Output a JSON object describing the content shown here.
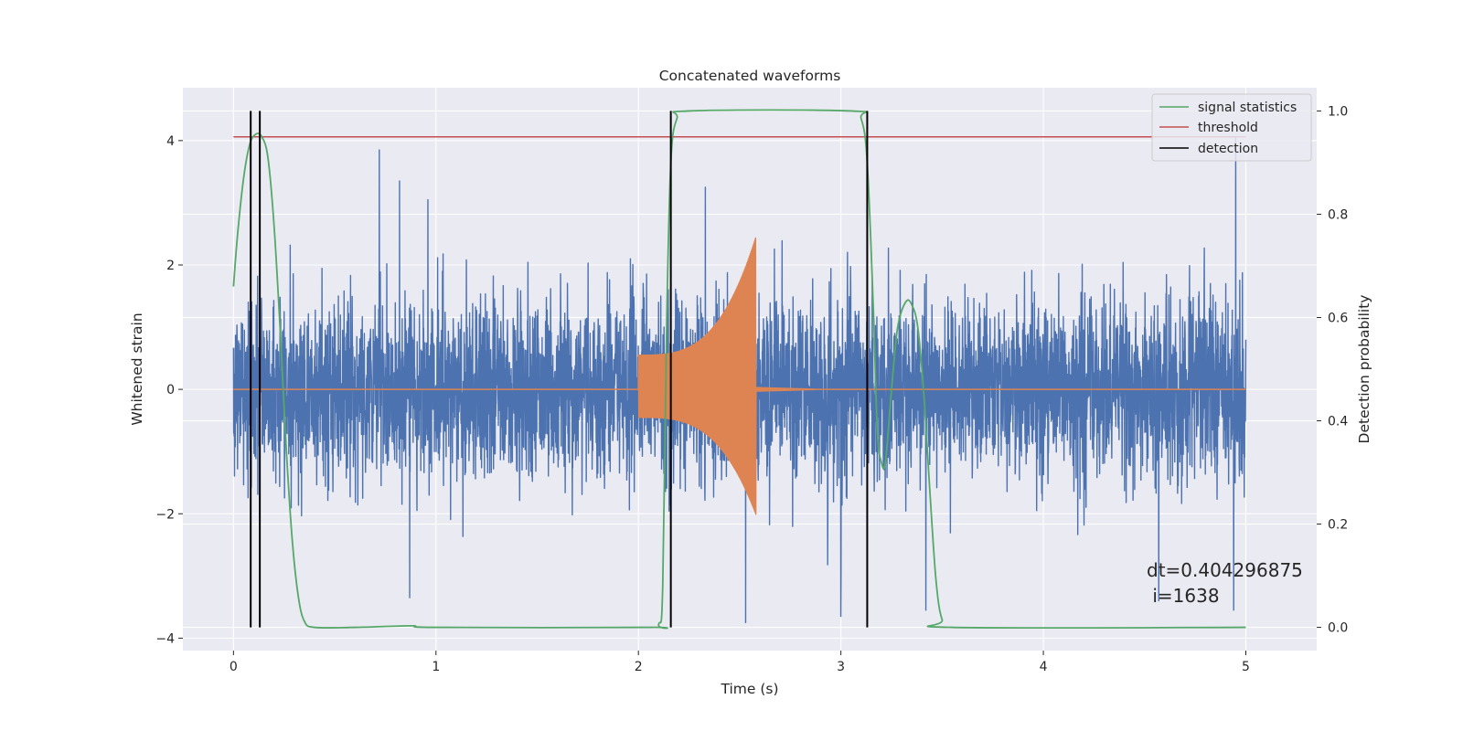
{
  "chart_data": {
    "type": "line",
    "title": "Concatenated waveforms",
    "xlabel": "Time (s)",
    "ylabel_left": "Whitened strain",
    "ylabel_right": "Detection probability",
    "xlim": [
      -0.25,
      5.35
    ],
    "ylim_left": [
      -4.2,
      4.85
    ],
    "ylim_right": [
      -0.045,
      1.045
    ],
    "x_ticks": [
      0,
      1,
      2,
      3,
      4,
      5
    ],
    "x_tick_labels": [
      "0",
      "1",
      "2",
      "3",
      "4",
      "5"
    ],
    "y_left_ticks": [
      -4,
      -2,
      0,
      2,
      4
    ],
    "y_left_tick_labels": [
      "−4",
      "−2",
      "0",
      "2",
      "4"
    ],
    "y_right_ticks": [
      0.0,
      0.2,
      0.4,
      0.6,
      0.8,
      1.0
    ],
    "y_right_tick_labels": [
      "0.0",
      "0.2",
      "0.4",
      "0.6",
      "0.8",
      "1.0"
    ],
    "grid": true,
    "legend_placement": "top-right",
    "colors": {
      "noise": "#4c72b0",
      "waveform": "#dd8452",
      "signal_statistics": "#55a868",
      "threshold": "#c44e52",
      "detection": "#000000",
      "plot_background": "#eaeaf2",
      "grid": "#ffffff"
    },
    "series": [
      {
        "name": "",
        "axis": "left",
        "kind": "noise",
        "x_range": [
          0,
          5
        ],
        "amplitude_std": 0.72,
        "peak_samples": [
          [
            0.72,
            3.85
          ],
          [
            0.82,
            3.35
          ],
          [
            4.95,
            4.05
          ],
          [
            0.96,
            3.05
          ],
          [
            2.33,
            3.25
          ],
          [
            3.42,
            -3.55
          ],
          [
            2.53,
            -3.75
          ],
          [
            3.0,
            -3.65
          ],
          [
            4.57,
            -3.4
          ],
          [
            4.94,
            -3.55
          ],
          [
            0.87,
            -3.35
          ]
        ]
      },
      {
        "name": "",
        "axis": "left",
        "kind": "chirp",
        "x_range": [
          2.0,
          2.58
        ],
        "amplitude_start": 0.55,
        "amplitude_peak": 2.45,
        "ringdown_end": 2.9
      },
      {
        "name": "signal statistics",
        "axis": "right",
        "points": [
          [
            0.0,
            0.66
          ],
          [
            0.02,
            0.76
          ],
          [
            0.05,
            0.87
          ],
          [
            0.08,
            0.935
          ],
          [
            0.11,
            0.955
          ],
          [
            0.14,
            0.95
          ],
          [
            0.17,
            0.91
          ],
          [
            0.2,
            0.78
          ],
          [
            0.23,
            0.58
          ],
          [
            0.26,
            0.35
          ],
          [
            0.29,
            0.17
          ],
          [
            0.32,
            0.06
          ],
          [
            0.35,
            0.012
          ],
          [
            0.4,
            0.0
          ],
          [
            0.6,
            0.0
          ],
          [
            0.88,
            0.003
          ],
          [
            1.0,
            0.0
          ],
          [
            2.05,
            0.0
          ],
          [
            2.1,
            0.006
          ],
          [
            2.12,
            0.08
          ],
          [
            2.14,
            0.6
          ],
          [
            2.16,
            0.9
          ],
          [
            2.19,
            0.985
          ],
          [
            2.25,
            1.0
          ],
          [
            3.05,
            1.0
          ],
          [
            3.1,
            0.985
          ],
          [
            3.13,
            0.9
          ],
          [
            3.16,
            0.62
          ],
          [
            3.18,
            0.38
          ],
          [
            3.2,
            0.32
          ],
          [
            3.22,
            0.32
          ],
          [
            3.25,
            0.46
          ],
          [
            3.28,
            0.58
          ],
          [
            3.32,
            0.63
          ],
          [
            3.35,
            0.625
          ],
          [
            3.38,
            0.58
          ],
          [
            3.41,
            0.45
          ],
          [
            3.44,
            0.26
          ],
          [
            3.47,
            0.09
          ],
          [
            3.5,
            0.015
          ],
          [
            3.55,
            0.0
          ],
          [
            5.0,
            0.0
          ]
        ]
      },
      {
        "name": "threshold",
        "axis": "right",
        "points": [
          [
            0.0,
            0.95
          ],
          [
            5.0,
            0.95
          ]
        ]
      },
      {
        "name": "detection",
        "axis": "right",
        "x_positions": [
          0.085,
          0.13,
          2.16,
          3.13
        ],
        "y_range": [
          0.0,
          1.0
        ]
      }
    ],
    "legend": [
      {
        "label": "signal statistics",
        "color": "#55a868"
      },
      {
        "label": "threshold",
        "color": "#c44e52"
      },
      {
        "label": "detection",
        "color": "#000000"
      }
    ],
    "annotation_lines": [
      "dt=0.404296875",
      " i=1638"
    ]
  }
}
